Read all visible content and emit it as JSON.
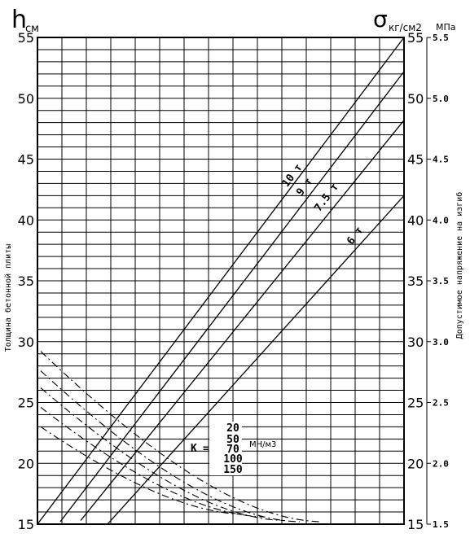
{
  "chart_data": {
    "type": "line",
    "left_axis": {
      "symbol": "h",
      "unit": "см",
      "label": "Толщина бетонной плиты",
      "ticks": [
        15,
        20,
        25,
        30,
        35,
        40,
        45,
        50,
        55
      ],
      "ylim": [
        15,
        55
      ]
    },
    "right_axis_kg": {
      "symbol": "σ",
      "unit": "кг/см2",
      "ticks": [
        15,
        20,
        25,
        30,
        35,
        40,
        45,
        50,
        55
      ],
      "ylim": [
        15,
        55
      ]
    },
    "right_axis_mpa": {
      "unit": "МПа",
      "label": "Допустимое напряжение на изгиб",
      "ticks": [
        "1.5",
        "2.0",
        "2.5",
        "3.0",
        "3.5",
        "4.0",
        "4.5",
        "5.0",
        "5.5"
      ],
      "ylim": [
        1.5,
        5.5
      ]
    },
    "grid": true,
    "load_lines": [
      {
        "label": "10 т",
        "top_h": 55.0,
        "bottom_h": 15.0
      },
      {
        "label": "9 т",
        "top_h": 52.2,
        "bottom_h": 15.2
      },
      {
        "label": "7.5 т",
        "top_h": 48.2,
        "bottom_h": 15.3
      },
      {
        "label": "6 т",
        "top_h": 42.0,
        "bottom_h": 15.0
      }
    ],
    "subgrade_modulus": {
      "symbol": "K",
      "unit": "МН/м3",
      "values": [
        "20",
        "50",
        "70",
        "100",
        "150"
      ],
      "curves": [
        {
          "value": 20,
          "h_start": 29.2,
          "h_end": 15.2
        },
        {
          "value": 50,
          "h_start": 27.6,
          "h_end": 15.2
        },
        {
          "value": 70,
          "h_start": 26.2,
          "h_end": 15.3
        },
        {
          "value": 100,
          "h_start": 24.6,
          "h_end": 15.6
        },
        {
          "value": 150,
          "h_start": 23.0,
          "h_end": 15.8
        }
      ]
    }
  }
}
